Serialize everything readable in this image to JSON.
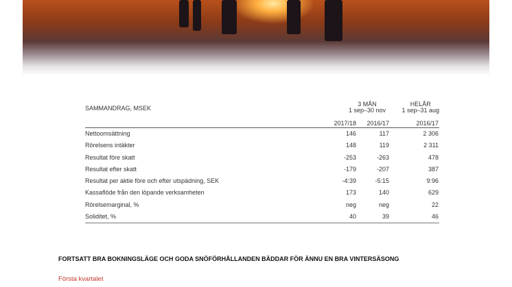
{
  "table": {
    "title": "SAMMANDRAG, MSEK",
    "group1": {
      "label": "3 MÅN",
      "period": "1 sep–30 nov"
    },
    "group2": {
      "label": "HELÅR",
      "period": "1 sep–31 aug"
    },
    "columns": [
      "2017/18",
      "2016/17",
      "2016/17"
    ],
    "rows": [
      {
        "label": "Nettoomsättning",
        "values": [
          "146",
          "117",
          "2 306"
        ]
      },
      {
        "label": "Rörelsens intäkter",
        "values": [
          "148",
          "119",
          "2 311"
        ]
      },
      {
        "label": "Resultat före skatt",
        "values": [
          "-253",
          "-263",
          "478"
        ]
      },
      {
        "label": "Resultat efter skatt",
        "values": [
          "-179",
          "-207",
          "387"
        ]
      },
      {
        "label": "Resultat per aktie före och efter utspädning, SEK",
        "values": [
          "-4:39",
          "-5:15",
          "9:96"
        ]
      },
      {
        "label": "Kassaflöde från den löpande verksamheten",
        "values": [
          "173",
          "140",
          "629"
        ]
      },
      {
        "label": "Rörelsemarginal, %",
        "values": [
          "neg",
          "neg",
          "22"
        ]
      },
      {
        "label": "Soliditet, %",
        "values": [
          "40",
          "39",
          "46"
        ]
      }
    ]
  },
  "heading": "FORTSATT BRA BOKNINGSLÄGE OCH GODA SNÖFÖRHÅLLANDEN BÄDDAR FÖR ÄNNU EN BRA VINTERSÄSONG",
  "subheading": "Första kvartalet",
  "colors": {
    "accent": "#c0392b"
  }
}
